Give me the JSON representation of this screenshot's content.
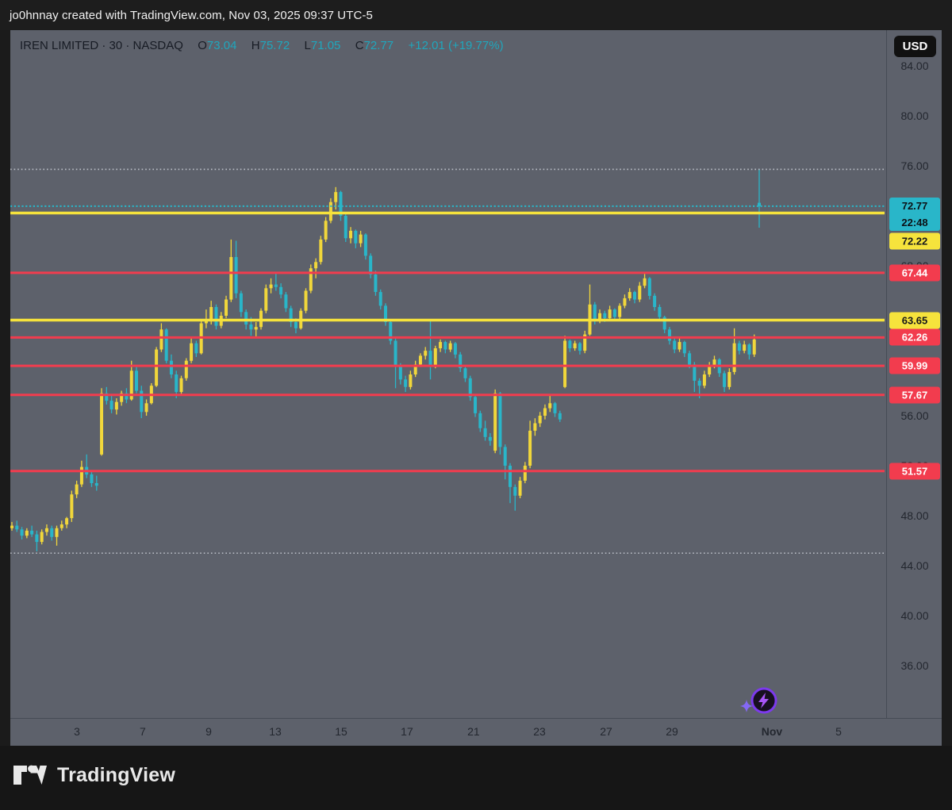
{
  "top_bar": {
    "attribution": "jo0hnnay created with TradingView.com, Nov 03, 2025 09:37 UTC-5"
  },
  "header": {
    "symbol_line": "IREN LIMITED · 30 · NASDAQ",
    "open_label": "O",
    "open": "73.04",
    "high_label": "H",
    "high": "75.72",
    "low_label": "L",
    "low": "71.05",
    "close_label": "C",
    "close": "72.77",
    "change": "+12.01 (+19.77%)"
  },
  "price_scale": {
    "currency_badge": "USD",
    "ticks": [
      {
        "label": "84.00",
        "value": 84
      },
      {
        "label": "80.00",
        "value": 80
      },
      {
        "label": "76.00",
        "value": 76
      },
      {
        "label": "72.00",
        "value": 72
      },
      {
        "label": "68.00",
        "value": 68
      },
      {
        "label": "64.00",
        "value": 64
      },
      {
        "label": "60.00",
        "value": 60
      },
      {
        "label": "56.00",
        "value": 56
      },
      {
        "label": "52.00",
        "value": 52
      },
      {
        "label": "48.00",
        "value": 48
      },
      {
        "label": "44.00",
        "value": 44
      },
      {
        "label": "40.00",
        "value": 40
      },
      {
        "label": "36.00",
        "value": 36
      }
    ]
  },
  "last_price": {
    "price_label": "72.77",
    "price_value": 72.77,
    "countdown": "22:48"
  },
  "time_scale": {
    "labels": [
      {
        "text": "3",
        "pos": 0.0644,
        "bold": false
      },
      {
        "text": "7",
        "pos": 0.1397,
        "bold": false
      },
      {
        "text": "9",
        "pos": 0.2151,
        "bold": false
      },
      {
        "text": "13",
        "pos": 0.2913,
        "bold": false
      },
      {
        "text": "15",
        "pos": 0.3666,
        "bold": false
      },
      {
        "text": "17",
        "pos": 0.4419,
        "bold": false
      },
      {
        "text": "21",
        "pos": 0.5181,
        "bold": false
      },
      {
        "text": "23",
        "pos": 0.5935,
        "bold": false
      },
      {
        "text": "27",
        "pos": 0.6697,
        "bold": false
      },
      {
        "text": "29",
        "pos": 0.745,
        "bold": false
      },
      {
        "text": "Nov",
        "pos": 0.8593,
        "bold": true
      },
      {
        "text": "5",
        "pos": 0.9356,
        "bold": false
      }
    ]
  },
  "footer": {
    "brand": "TradingView"
  },
  "icons": {
    "spark": "lightning-spark-icon",
    "logo": "tradingview-logo"
  },
  "colors": {
    "up": "#f1d73b",
    "down": "#29b6c9",
    "red_line": "#f23c4e",
    "yellow_line": "#f6e33c",
    "dotted_gray": "#bcc0c8",
    "dotted_cyan": "#29b6c9",
    "bg": "#5d616b",
    "frame": "#1b1b1b",
    "axis_text": "#23272f",
    "purple": "#7c3aed"
  },
  "chart_data": {
    "type": "candlestick",
    "symbol": "IREN LIMITED",
    "interval": "30",
    "exchange": "NASDAQ",
    "title": "IREN LIMITED · 30 · NASDAQ",
    "ohlc_display": {
      "open": 73.04,
      "high": 75.72,
      "low": 71.05,
      "close": 72.77,
      "change_abs": "+12.01",
      "change_pct": "+19.77%"
    },
    "y_axis": {
      "currency": "USD",
      "visible_min": 34.5,
      "visible_max": 85.5,
      "grid": false
    },
    "x_axis": {
      "labels": [
        "3",
        "7",
        "9",
        "13",
        "15",
        "17",
        "21",
        "23",
        "27",
        "29",
        "Nov",
        "5"
      ]
    },
    "levels": {
      "yellow": [
        {
          "price": 72.22,
          "label": "72.22",
          "badge_y_override": 266
        },
        {
          "price": 63.65,
          "label": "63.65"
        }
      ],
      "red": [
        {
          "price": 67.44,
          "label": "67.44"
        },
        {
          "price": 62.26,
          "label": "62.26"
        },
        {
          "price": 59.99,
          "label": "59.99"
        },
        {
          "price": 57.67,
          "label": "57.67"
        },
        {
          "price": 51.57,
          "label": "51.57"
        }
      ]
    },
    "reference_lines": {
      "high_dotted": 75.72,
      "low_dotted": 45.0,
      "last_dotted": 72.77
    },
    "legend_position": "none",
    "candles": [
      [
        47.0,
        47.5,
        46.8,
        47.2
      ],
      [
        47.2,
        47.6,
        46.7,
        46.9
      ],
      [
        46.9,
        47.1,
        46.1,
        46.4
      ],
      [
        46.4,
        47.0,
        46.2,
        46.8
      ],
      [
        46.8,
        47.2,
        46.3,
        46.5
      ],
      [
        46.5,
        46.8,
        45.15,
        45.9
      ],
      [
        45.9,
        46.9,
        45.7,
        46.7
      ],
      [
        46.7,
        47.3,
        46.4,
        47.0
      ],
      [
        47.0,
        47.2,
        46.0,
        46.3
      ],
      [
        46.3,
        47.2,
        45.6,
        47.0
      ],
      [
        47.0,
        47.6,
        46.8,
        47.3
      ],
      [
        47.3,
        47.9,
        47.0,
        47.8
      ],
      [
        47.8,
        50.0,
        47.5,
        49.7
      ],
      [
        49.7,
        50.8,
        49.4,
        50.5
      ],
      [
        50.5,
        52.4,
        50.3,
        51.9
      ],
      [
        51.9,
        52.9,
        51.0,
        51.3
      ],
      [
        51.3,
        51.6,
        50.3,
        50.6
      ],
      [
        50.6,
        51.2,
        50.0,
        50.4
      ],
      [
        52.9,
        58.2,
        52.8,
        57.8
      ],
      [
        57.8,
        58.3,
        56.9,
        57.2
      ],
      [
        57.2,
        57.6,
        56.2,
        56.5
      ],
      [
        56.5,
        57.4,
        56.1,
        57.1
      ],
      [
        57.1,
        58.0,
        56.8,
        57.8
      ],
      [
        57.8,
        58.2,
        57.0,
        57.3
      ],
      [
        57.3,
        60.4,
        57.2,
        59.6
      ],
      [
        59.6,
        59.9,
        57.8,
        58.0
      ],
      [
        58.0,
        58.4,
        55.8,
        56.3
      ],
      [
        56.3,
        57.3,
        56.0,
        57.0
      ],
      [
        57.0,
        58.6,
        56.9,
        58.4
      ],
      [
        58.4,
        61.5,
        58.3,
        61.3
      ],
      [
        61.3,
        63.4,
        61.1,
        62.9
      ],
      [
        62.9,
        63.0,
        60.2,
        60.4
      ],
      [
        60.4,
        60.9,
        59.0,
        59.3
      ],
      [
        59.3,
        59.6,
        57.4,
        57.9
      ],
      [
        57.9,
        59.2,
        57.7,
        59.0
      ],
      [
        59.0,
        60.6,
        58.8,
        60.4
      ],
      [
        60.4,
        62.2,
        60.2,
        61.8
      ],
      [
        61.8,
        62.0,
        60.7,
        61.0
      ],
      [
        61.0,
        63.6,
        60.9,
        63.4
      ],
      [
        63.4,
        64.5,
        63.0,
        63.6
      ],
      [
        63.6,
        65.2,
        63.3,
        64.7
      ],
      [
        64.7,
        64.9,
        62.9,
        63.2
      ],
      [
        63.2,
        64.3,
        63.0,
        64.0
      ],
      [
        64.0,
        65.6,
        63.8,
        65.3
      ],
      [
        65.3,
        70.1,
        65.1,
        68.7
      ],
      [
        68.7,
        70.0,
        65.4,
        65.8
      ],
      [
        65.8,
        66.0,
        63.9,
        64.3
      ],
      [
        64.3,
        64.5,
        62.9,
        63.3
      ],
      [
        63.3,
        63.9,
        62.4,
        62.9
      ],
      [
        62.9,
        63.5,
        62.2,
        63.1
      ],
      [
        63.1,
        64.6,
        62.9,
        64.4
      ],
      [
        64.4,
        66.5,
        64.2,
        66.2
      ],
      [
        66.2,
        67.0,
        65.8,
        66.5
      ],
      [
        66.5,
        67.5,
        66.0,
        66.3
      ],
      [
        66.3,
        66.6,
        65.4,
        65.7
      ],
      [
        65.7,
        65.9,
        64.3,
        64.6
      ],
      [
        64.6,
        64.8,
        63.1,
        63.5
      ],
      [
        63.5,
        63.8,
        62.6,
        63.0
      ],
      [
        63.0,
        64.6,
        62.9,
        64.4
      ],
      [
        64.4,
        66.2,
        64.2,
        66.0
      ],
      [
        66.0,
        68.1,
        65.8,
        67.8
      ],
      [
        67.8,
        68.6,
        67.0,
        68.3
      ],
      [
        68.3,
        70.4,
        68.1,
        70.1
      ],
      [
        70.1,
        71.9,
        69.9,
        71.6
      ],
      [
        71.6,
        73.4,
        71.4,
        73.1
      ],
      [
        73.1,
        74.3,
        72.5,
        73.9
      ],
      [
        73.9,
        74.0,
        71.6,
        72.0
      ],
      [
        72.0,
        72.2,
        69.9,
        70.2
      ],
      [
        70.2,
        71.1,
        69.8,
        70.8
      ],
      [
        70.8,
        70.9,
        69.4,
        69.8
      ],
      [
        69.8,
        70.8,
        69.5,
        70.5
      ],
      [
        70.5,
        70.6,
        68.5,
        68.8
      ],
      [
        68.8,
        69.0,
        67.0,
        67.3
      ],
      [
        67.3,
        67.6,
        65.6,
        65.9
      ],
      [
        65.9,
        66.1,
        64.5,
        64.8
      ],
      [
        64.8,
        65.0,
        63.2,
        63.5
      ],
      [
        63.5,
        63.7,
        61.7,
        62.0
      ],
      [
        62.0,
        62.2,
        58.2,
        60.0
      ],
      [
        60.0,
        60.2,
        58.5,
        58.9
      ],
      [
        58.9,
        59.2,
        57.9,
        58.3
      ],
      [
        58.3,
        59.6,
        58.1,
        59.3
      ],
      [
        59.3,
        60.4,
        59.1,
        60.1
      ],
      [
        60.1,
        61.0,
        59.9,
        60.8
      ],
      [
        60.8,
        61.5,
        60.5,
        61.2
      ],
      [
        61.2,
        63.7,
        58.9,
        60.0
      ],
      [
        60.0,
        61.6,
        59.8,
        61.4
      ],
      [
        61.4,
        62.1,
        61.1,
        61.9
      ],
      [
        61.9,
        62.0,
        61.0,
        61.3
      ],
      [
        61.3,
        62.0,
        61.1,
        61.8
      ],
      [
        61.8,
        61.9,
        60.6,
        60.9
      ],
      [
        60.9,
        61.1,
        59.5,
        59.8
      ],
      [
        59.8,
        60.0,
        58.7,
        59.0
      ],
      [
        59.0,
        59.2,
        57.2,
        57.5
      ],
      [
        57.5,
        57.7,
        55.9,
        56.2
      ],
      [
        56.2,
        56.4,
        54.7,
        55.0
      ],
      [
        55.0,
        55.6,
        54.0,
        54.3
      ],
      [
        54.3,
        54.6,
        53.6,
        54.0
      ],
      [
        53.2,
        58.1,
        53.0,
        57.8
      ],
      [
        57.8,
        57.9,
        52.9,
        53.5
      ],
      [
        53.5,
        53.7,
        50.9,
        52.0
      ],
      [
        52.0,
        52.2,
        49.0,
        50.3
      ],
      [
        50.3,
        50.5,
        48.4,
        49.6
      ],
      [
        49.6,
        51.1,
        49.4,
        50.8
      ],
      [
        50.8,
        52.3,
        50.6,
        52.0
      ],
      [
        52.0,
        55.6,
        51.8,
        54.8
      ],
      [
        54.8,
        55.8,
        54.4,
        55.4
      ],
      [
        55.4,
        56.3,
        55.1,
        56.0
      ],
      [
        56.0,
        56.9,
        55.7,
        56.6
      ],
      [
        56.6,
        57.6,
        56.3,
        57.0
      ],
      [
        57.0,
        57.1,
        55.9,
        56.2
      ],
      [
        56.2,
        56.4,
        55.5,
        55.7
      ],
      [
        58.3,
        62.4,
        58.2,
        62.0
      ],
      [
        62.0,
        62.1,
        61.1,
        61.4
      ],
      [
        61.4,
        62.0,
        61.2,
        61.8
      ],
      [
        61.8,
        61.9,
        60.9,
        61.2
      ],
      [
        61.2,
        62.8,
        61.0,
        62.5
      ],
      [
        62.5,
        66.5,
        62.4,
        64.9
      ],
      [
        64.9,
        65.1,
        63.3,
        63.6
      ],
      [
        63.6,
        64.5,
        63.4,
        64.2
      ],
      [
        64.2,
        64.4,
        63.5,
        63.8
      ],
      [
        63.8,
        64.8,
        63.6,
        64.5
      ],
      [
        64.5,
        64.6,
        63.6,
        63.9
      ],
      [
        63.9,
        65.0,
        63.7,
        64.8
      ],
      [
        64.8,
        65.7,
        64.6,
        65.4
      ],
      [
        65.4,
        66.2,
        65.2,
        65.9
      ],
      [
        65.9,
        66.0,
        65.0,
        65.3
      ],
      [
        65.3,
        66.7,
        65.1,
        66.4
      ],
      [
        66.4,
        67.35,
        66.2,
        67.0
      ],
      [
        67.0,
        67.1,
        65.3,
        65.6
      ],
      [
        65.6,
        65.8,
        64.4,
        64.7
      ],
      [
        64.7,
        64.9,
        63.6,
        63.9
      ],
      [
        63.9,
        64.0,
        62.6,
        62.9
      ],
      [
        62.9,
        63.1,
        61.7,
        62.0
      ],
      [
        62.0,
        62.2,
        61.0,
        61.3
      ],
      [
        61.3,
        62.2,
        61.1,
        61.9
      ],
      [
        61.9,
        62.0,
        60.7,
        61.0
      ],
      [
        61.0,
        61.2,
        59.8,
        60.1
      ],
      [
        60.1,
        60.3,
        57.9,
        58.8
      ],
      [
        58.8,
        59.0,
        57.4,
        58.4
      ],
      [
        58.4,
        59.6,
        58.2,
        59.3
      ],
      [
        59.3,
        60.3,
        59.1,
        60.0
      ],
      [
        60.0,
        60.8,
        59.8,
        60.5
      ],
      [
        60.5,
        60.6,
        59.1,
        59.4
      ],
      [
        59.4,
        59.6,
        57.9,
        58.3
      ],
      [
        58.3,
        59.8,
        58.1,
        59.5
      ],
      [
        59.5,
        63.0,
        59.3,
        61.8
      ],
      [
        61.8,
        62.0,
        60.9,
        61.2
      ],
      [
        61.2,
        62.0,
        61.0,
        61.7
      ],
      [
        61.7,
        61.8,
        60.5,
        60.9
      ],
      [
        60.9,
        62.5,
        60.7,
        62.1
      ],
      [
        73.04,
        75.72,
        71.05,
        72.77
      ]
    ]
  }
}
